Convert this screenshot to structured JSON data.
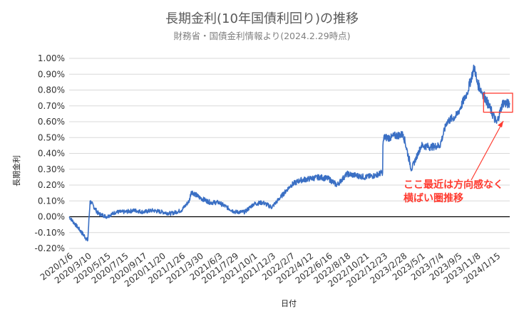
{
  "chart_data": {
    "type": "line",
    "title": "長期金利(10年国債利回り)の推移",
    "subtitle": "財務省・国債金利情報より(2024.2.29時点)",
    "xlabel": "日付",
    "ylabel": "長期金利",
    "ylim": [
      -0.002,
      0.01
    ],
    "y_ticks": [
      "1.00%",
      "0.90%",
      "0.80%",
      "0.70%",
      "0.60%",
      "0.50%",
      "0.40%",
      "0.30%",
      "0.20%",
      "0.10%",
      "0.00%",
      "-0.10%",
      "-0.20%"
    ],
    "x_ticks": [
      "2020/1/6",
      "2020/3/10",
      "2020/5/15",
      "2020/7/15",
      "2020/9/17",
      "2020/11/20",
      "2021/1/26",
      "2021/3/30",
      "2021/6/3",
      "2021/7/29",
      "2021/10/1",
      "2021/12/3",
      "2022/2/7",
      "2022/4/12",
      "2022/6/16",
      "2022/8/18",
      "2022/10/21",
      "2022/12/23",
      "2023/2/28",
      "2023/5/1",
      "2023/7/4",
      "2023/9/5",
      "2023/11/8",
      "2024/1/15"
    ],
    "grid": "horizontal",
    "line_color": "#3a6fc4",
    "series": [
      {
        "x": [
          "2020/1/6",
          "2020/2/10",
          "2020/3/10",
          "2020/3/18",
          "2020/4/15",
          "2020/5/15",
          "2020/6/15",
          "2020/7/15",
          "2020/8/17",
          "2020/9/17",
          "2020/10/19",
          "2020/11/20",
          "2020/12/21",
          "2021/1/26",
          "2021/2/22",
          "2021/3/1",
          "2021/3/30",
          "2021/5/6",
          "2021/6/3",
          "2021/7/1",
          "2021/7/29",
          "2021/9/1",
          "2021/10/1",
          "2021/11/1",
          "2021/12/3",
          "2022/1/5",
          "2022/2/7",
          "2022/3/10",
          "2022/4/12",
          "2022/5/16",
          "2022/6/16",
          "2022/7/15",
          "2022/8/18",
          "2022/9/20",
          "2022/10/21",
          "2022/11/22",
          "2022/12/19",
          "2022/12/20",
          "2022/12/23",
          "2023/1/18",
          "2023/1/27",
          "2023/2/28",
          "2023/3/28",
          "2023/5/1",
          "2023/6/1",
          "2023/7/4",
          "2023/7/28",
          "2023/8/31",
          "2023/9/5",
          "2023/10/5",
          "2023/10/31",
          "2023/11/8",
          "2023/12/7",
          "2024/1/15",
          "2024/2/5",
          "2024/2/29"
        ],
        "values": [
          0.0,
          -0.0008,
          -0.0015,
          0.001,
          0.0002,
          0.0,
          0.0003,
          0.0003,
          0.0004,
          0.0003,
          0.0004,
          0.0003,
          0.0002,
          0.0004,
          0.001,
          0.0016,
          0.0012,
          0.0009,
          0.0009,
          0.0006,
          0.0003,
          0.0003,
          0.0008,
          0.0009,
          0.0006,
          0.0013,
          0.002,
          0.0023,
          0.0024,
          0.0025,
          0.0024,
          0.002,
          0.0027,
          0.0026,
          0.0025,
          0.0026,
          0.0028,
          0.0045,
          0.005,
          0.005,
          0.0051,
          0.0052,
          0.003,
          0.0045,
          0.0044,
          0.0045,
          0.006,
          0.0064,
          0.0066,
          0.0078,
          0.0095,
          0.0085,
          0.0075,
          0.0059,
          0.0072,
          0.0071
        ]
      }
    ],
    "annotation": {
      "lines": [
        "ここ最近は方向感なく",
        "横ばい圏推移"
      ],
      "color": "#ff3b30"
    }
  }
}
